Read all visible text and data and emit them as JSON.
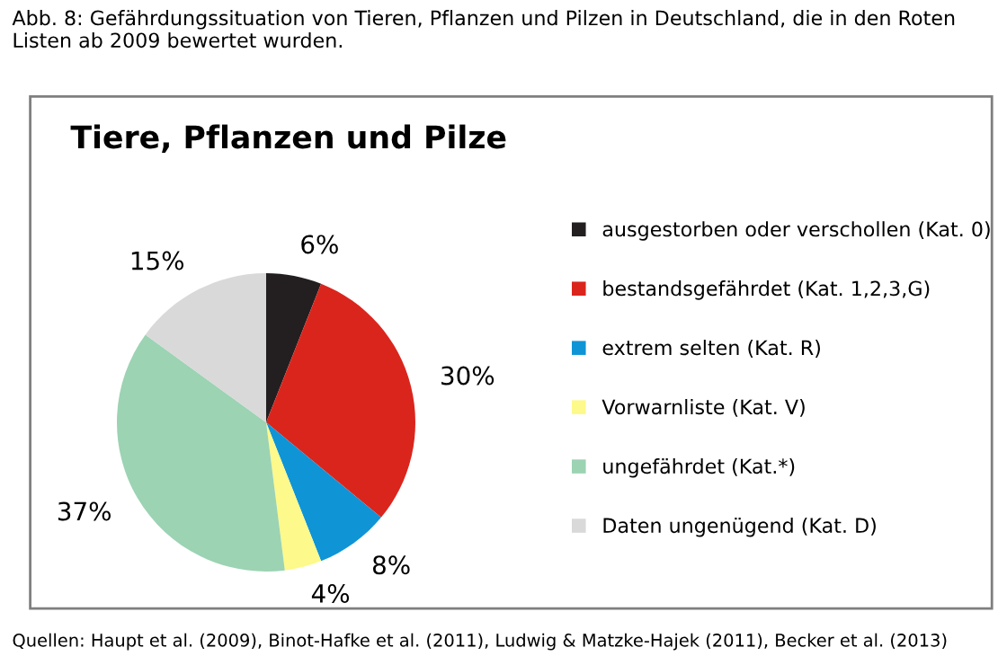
{
  "chart_data": {
    "type": "pie",
    "title": "Abb. 8: Gefährdungssituation von Tieren, Pflanzen und Pilzen in Deutschland, die in den Roten Listen ab 2009 bewertet wurden.",
    "subtitle": "Tiere, Pflanzen und Pilze",
    "categories": [
      "ausgestorben oder verschollen (Kat. 0)",
      "bestandsgefährdet (Kat. 1,2,3,G)",
      "extrem selten (Kat. R)",
      "Vorwarnliste (Kat. V)",
      "ungefährdet (Kat.*)",
      "Daten ungenügend (Kat. D)"
    ],
    "values": [
      6,
      30,
      8,
      4,
      37,
      15
    ],
    "value_labels": [
      "6%",
      "30%",
      "8%",
      "4%",
      "37%",
      "15%"
    ],
    "colors": [
      "#231f20",
      "#da251d",
      "#0f94d6",
      "#fdf98a",
      "#9cd3b3",
      "#d9d9d9"
    ],
    "legend": "right",
    "annotations": [
      "Quellen: Haupt et al. (2009), Binot-Hafke et al. (2011), Ludwig & Matzke-Hajek (2011), Becker et al. (2013)"
    ]
  }
}
